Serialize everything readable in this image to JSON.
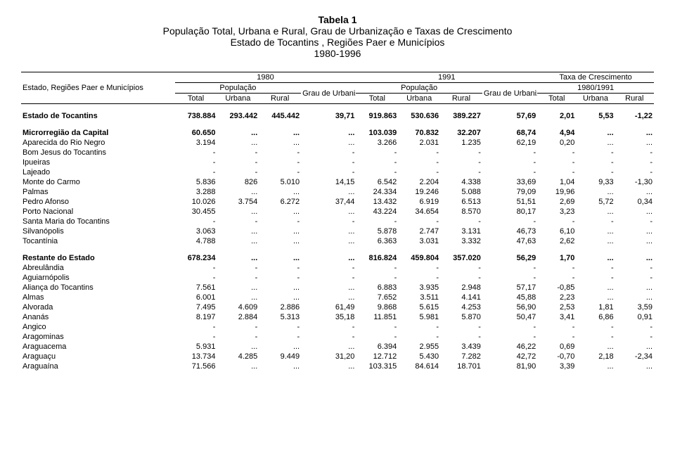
{
  "title": {
    "l1": "Tabela 1",
    "l2": "População Total, Urbana e Rural, Grau de Urbanização e Taxas de Crescimento",
    "l3": "Estado de Tocantins , Regiões Paer e Municípios",
    "l4": "1980-1996"
  },
  "header": {
    "y1980": "1980",
    "y1991": "1991",
    "taxa": "Taxa de Crescimento",
    "estado": "Estado, Regiões Paer e Municípios",
    "pop": "População",
    "grau": "Grau de Urbanização",
    "period": "1980/1991",
    "total": "Total",
    "urbana": "Urbana",
    "rural": "Rural"
  },
  "rows": [
    {
      "name": "Estado de Tocantins",
      "bold": true,
      "c": [
        "738.884",
        "293.442",
        "445.442",
        "39,71",
        "919.863",
        "530.636",
        "389.227",
        "57,69",
        "2,01",
        "5,53",
        "-1,22"
      ]
    },
    {
      "spacer": true
    },
    {
      "name": "Microrregião da Capital",
      "bold": true,
      "c": [
        "60.650",
        "...",
        "...",
        "...",
        "103.039",
        "70.832",
        "32.207",
        "68,74",
        "4,94",
        "...",
        "..."
      ]
    },
    {
      "name": "Aparecida do Rio Negro",
      "c": [
        "3.194",
        "...",
        "...",
        "...",
        "3.266",
        "2.031",
        "1.235",
        "62,19",
        "0,20",
        "...",
        "..."
      ]
    },
    {
      "name": "Bom Jesus do Tocantins",
      "c": [
        "-",
        "-",
        "-",
        "-",
        "-",
        "-",
        "-",
        "-",
        "-",
        "-",
        "-"
      ]
    },
    {
      "name": "Ipueiras",
      "c": [
        "-",
        "-",
        "-",
        "-",
        "-",
        "-",
        "-",
        "-",
        "-",
        "-",
        "-"
      ]
    },
    {
      "name": "Lajeado",
      "c": [
        "-",
        "-",
        "-",
        "-",
        "-",
        "-",
        "-",
        "-",
        "-",
        "-",
        "-"
      ]
    },
    {
      "name": "Monte do Carmo",
      "c": [
        "5.836",
        "826",
        "5.010",
        "14,15",
        "6.542",
        "2.204",
        "4.338",
        "33,69",
        "1,04",
        "9,33",
        "-1,30"
      ]
    },
    {
      "name": "Palmas",
      "c": [
        "3.288",
        "...",
        "...",
        "...",
        "24.334",
        "19.246",
        "5.088",
        "79,09",
        "19,96",
        "...",
        "..."
      ]
    },
    {
      "name": "Pedro Afonso",
      "c": [
        "10.026",
        "3.754",
        "6.272",
        "37,44",
        "13.432",
        "6.919",
        "6.513",
        "51,51",
        "2,69",
        "5,72",
        "0,34"
      ]
    },
    {
      "name": "Porto Nacional",
      "c": [
        "30.455",
        "...",
        "...",
        "...",
        "43.224",
        "34.654",
        "8.570",
        "80,17",
        "3,23",
        "...",
        "..."
      ]
    },
    {
      "name": "Santa Maria do Tocantins",
      "c": [
        "-",
        "-",
        "-",
        "-",
        "-",
        "-",
        "-",
        "-",
        "-",
        "-",
        "-"
      ]
    },
    {
      "name": "Silvanópolis",
      "c": [
        "3.063",
        "...",
        "...",
        "...",
        "5.878",
        "2.747",
        "3.131",
        "46,73",
        "6,10",
        "...",
        "..."
      ]
    },
    {
      "name": "Tocantínia",
      "c": [
        "4.788",
        "...",
        "...",
        "...",
        "6.363",
        "3.031",
        "3.332",
        "47,63",
        "2,62",
        "...",
        "..."
      ]
    },
    {
      "spacer": true
    },
    {
      "name": "Restante do Estado",
      "bold": true,
      "c": [
        "678.234",
        "...",
        "...",
        "...",
        "816.824",
        "459.804",
        "357.020",
        "56,29",
        "1,70",
        "...",
        "..."
      ]
    },
    {
      "name": "Abreulândia",
      "c": [
        "-",
        "-",
        "-",
        "-",
        "-",
        "-",
        "-",
        "-",
        "-",
        "-",
        "-"
      ]
    },
    {
      "name": "Aguiarnópolis",
      "c": [
        "-",
        "-",
        "-",
        "-",
        "-",
        "-",
        "-",
        "-",
        "-",
        "-",
        "-"
      ]
    },
    {
      "name": "Aliança do Tocantins",
      "c": [
        "7.561",
        "...",
        "...",
        "...",
        "6.883",
        "3.935",
        "2.948",
        "57,17",
        "-0,85",
        "...",
        "..."
      ]
    },
    {
      "name": "Almas",
      "c": [
        "6.001",
        "...",
        "...",
        "...",
        "7.652",
        "3.511",
        "4.141",
        "45,88",
        "2,23",
        "...",
        "..."
      ]
    },
    {
      "name": "Alvorada",
      "c": [
        "7.495",
        "4.609",
        "2.886",
        "61,49",
        "9.868",
        "5.615",
        "4.253",
        "56,90",
        "2,53",
        "1,81",
        "3,59"
      ]
    },
    {
      "name": "Ananás",
      "c": [
        "8.197",
        "2.884",
        "5.313",
        "35,18",
        "11.851",
        "5.981",
        "5.870",
        "50,47",
        "3,41",
        "6,86",
        "0,91"
      ]
    },
    {
      "name": "Angico",
      "c": [
        "-",
        "-",
        "-",
        "-",
        "-",
        "-",
        "-",
        "-",
        "-",
        "-",
        "-"
      ]
    },
    {
      "name": "Aragominas",
      "c": [
        "-",
        "-",
        "-",
        "-",
        "-",
        "-",
        "-",
        "-",
        "-",
        "-",
        "-"
      ]
    },
    {
      "name": "Araguacema",
      "c": [
        "5.931",
        "...",
        "...",
        "...",
        "6.394",
        "2.955",
        "3.439",
        "46,22",
        "0,69",
        "...",
        "..."
      ]
    },
    {
      "name": "Araguaçu",
      "c": [
        "13.734",
        "4.285",
        "9.449",
        "31,20",
        "12.712",
        "5.430",
        "7.282",
        "42,72",
        "-0,70",
        "2,18",
        "-2,34"
      ]
    },
    {
      "name": "Araguaína",
      "c": [
        "71.566",
        "...",
        "...",
        "...",
        "103.315",
        "84.614",
        "18.701",
        "81,90",
        "3,39",
        "...",
        "..."
      ]
    }
  ]
}
